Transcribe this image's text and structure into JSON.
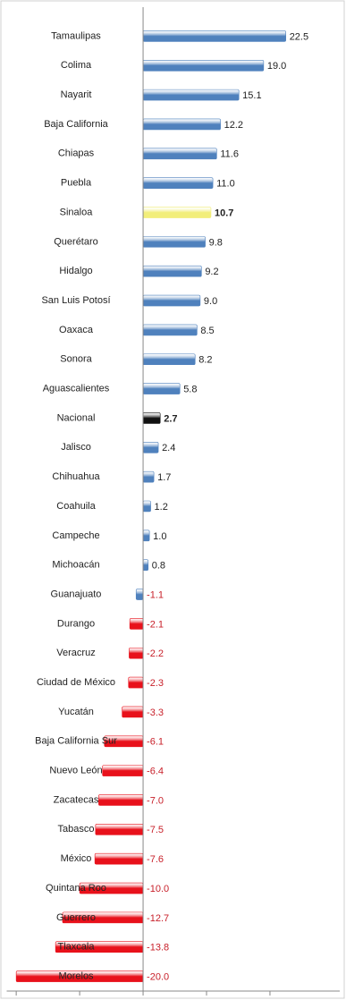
{
  "chart_data": {
    "type": "bar",
    "orientation": "horizontal",
    "categories": [
      "Tamaulipas",
      "Colima",
      "Nayarit",
      "Baja California",
      "Chiapas",
      "Puebla",
      "Sinaloa",
      "Querétaro",
      "Hidalgo",
      "San Luis Potosí",
      "Oaxaca",
      "Sonora",
      "Aguascalientes",
      "Nacional",
      "Jalisco",
      "Chihuahua",
      "Coahuila",
      "Campeche",
      "Michoacán",
      "Guanajuato",
      "Durango",
      "Veracruz",
      "Ciudad de México",
      "Yucatán",
      "Baja California Sur",
      "Nuevo León",
      "Zacatecas",
      "Tabasco",
      "México",
      "Quintana Roo",
      "Guerrero",
      "Tlaxcala",
      "Morelos"
    ],
    "values": [
      22.5,
      19.0,
      15.1,
      12.2,
      11.6,
      11.0,
      10.7,
      9.8,
      9.2,
      9.0,
      8.5,
      8.2,
      5.8,
      2.7,
      2.4,
      1.7,
      1.2,
      1.0,
      0.8,
      -1.1,
      -2.1,
      -2.2,
      -2.3,
      -3.3,
      -6.1,
      -6.4,
      -7.0,
      -7.5,
      -7.6,
      -10.0,
      -12.7,
      -13.8,
      -20.0
    ],
    "value_labels": [
      "22.5",
      "19.0",
      "15.1",
      "12.2",
      "11.6",
      "11.0",
      "10.7",
      "9.8",
      "9.2",
      "9.0",
      "8.5",
      "8.2",
      "5.8",
      "2.7",
      "2.4",
      "1.7",
      "1.2",
      "1.0",
      "0.8",
      "-1.1",
      "-2.1",
      "-2.2",
      "-2.3",
      "-3.3",
      "-6.1",
      "-6.4",
      "-7.0",
      "-7.5",
      "-7.6",
      "-10.0",
      "-12.7",
      "-13.8",
      "-20.0"
    ],
    "colors": [
      "#4f81bd",
      "#4f81bd",
      "#4f81bd",
      "#4f81bd",
      "#4f81bd",
      "#4f81bd",
      "#f2ee7a",
      "#4f81bd",
      "#4f81bd",
      "#4f81bd",
      "#4f81bd",
      "#4f81bd",
      "#4f81bd",
      "#111111",
      "#4f81bd",
      "#4f81bd",
      "#4f81bd",
      "#4f81bd",
      "#4f81bd",
      "#4f81bd",
      "#e8111b",
      "#e8111b",
      "#e8111b",
      "#e8111b",
      "#e8111b",
      "#e8111b",
      "#e8111b",
      "#e8111b",
      "#e8111b",
      "#e8111b",
      "#e8111b",
      "#e8111b",
      "#e8111b"
    ],
    "color": "#4f81bd",
    "negative_label_color": "#c8202a",
    "xlim": [
      -21.5,
      31
    ],
    "xticks": [
      -20,
      -10,
      0,
      10,
      20
    ]
  }
}
